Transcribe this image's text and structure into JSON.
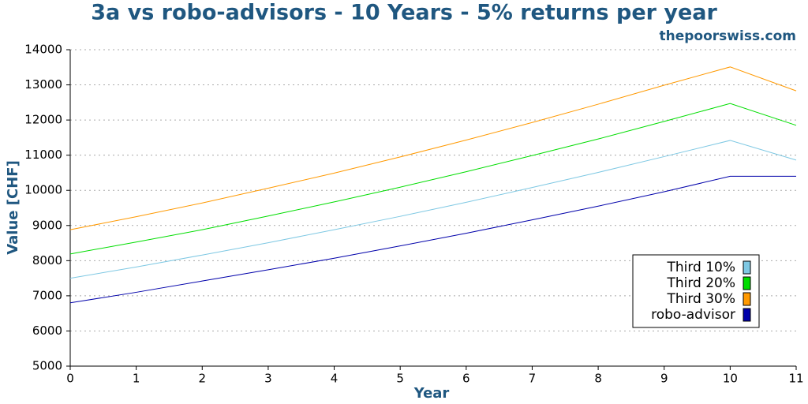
{
  "chart_data": {
    "type": "line",
    "title": "3a vs robo-advisors - 10 Years - 5% returns per year",
    "subtitle": "thepoorswiss.com",
    "x_label": "Year",
    "y_label": "Value [CHF]",
    "x": [
      0,
      1,
      2,
      3,
      4,
      5,
      6,
      7,
      8,
      9,
      10,
      11
    ],
    "series": [
      {
        "name": "Third 10%",
        "color": "#7ec8e3",
        "values": [
          7500,
          7820,
          8160,
          8510,
          8880,
          9260,
          9660,
          10080,
          10510,
          10960,
          11420,
          10860
        ]
      },
      {
        "name": "Third 20%",
        "color": "#00dd00",
        "values": [
          8190,
          8530,
          8880,
          9270,
          9670,
          10090,
          10530,
          10990,
          11460,
          11960,
          12470,
          11850
        ]
      },
      {
        "name": "Third 30%",
        "color": "#ff9900",
        "values": [
          8880,
          9250,
          9640,
          10060,
          10490,
          10950,
          11430,
          11930,
          12450,
          12990,
          13510,
          12830
        ]
      },
      {
        "name": "robo-advisor",
        "color": "#0000aa",
        "values": [
          6800,
          7100,
          7420,
          7740,
          8070,
          8420,
          8780,
          9160,
          9550,
          9960,
          10400,
          10400
        ]
      }
    ],
    "xlim": [
      0,
      11
    ],
    "xticks": [
      0,
      1,
      2,
      3,
      4,
      5,
      6,
      7,
      8,
      9,
      10,
      11
    ],
    "ylim": [
      5000,
      14000
    ],
    "yticks": [
      5000,
      6000,
      7000,
      8000,
      9000,
      10000,
      11000,
      12000,
      13000,
      14000
    ],
    "grid": true,
    "legend": "lower right"
  }
}
